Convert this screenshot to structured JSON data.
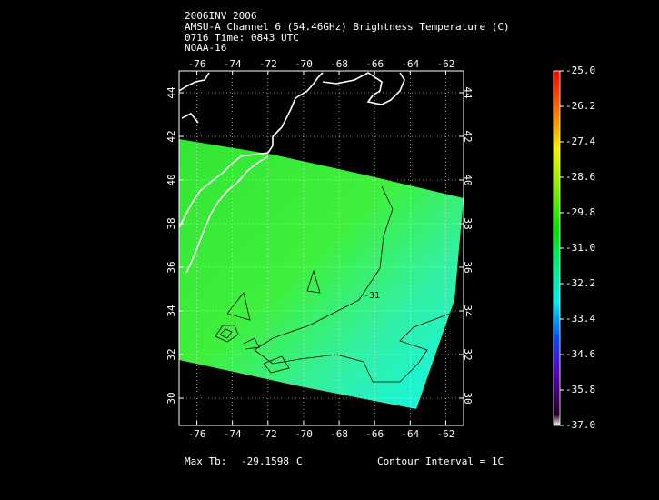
{
  "header": {
    "lines": [
      "2006INV 2006",
      "AMSU-A Channel 6 (54.46GHz) Brightness Temperature (C)",
      "0716 Time: 0843 UTC",
      "NOAA-16"
    ]
  },
  "map": {
    "xlim": [
      -77,
      -61
    ],
    "ylim": [
      28.75,
      45
    ],
    "xticks": [
      -76,
      -74,
      -72,
      -70,
      -68,
      -66,
      -64,
      -62
    ],
    "yticks": [
      30,
      32,
      34,
      36,
      38,
      40,
      42,
      44
    ],
    "contour_label": "-31"
  },
  "colorbar": {
    "lim": [
      -37,
      -25
    ],
    "ticks": [
      {
        "value": -25,
        "label": "-25.0"
      },
      {
        "value": -26.2,
        "label": "-26.2"
      },
      {
        "value": -27.4,
        "label": "-27.4"
      },
      {
        "value": -28.6,
        "label": "-28.6"
      },
      {
        "value": -29.8,
        "label": "-29.8"
      },
      {
        "value": -31,
        "label": "-31.0"
      },
      {
        "value": -32.2,
        "label": "-32.2"
      },
      {
        "value": -33.4,
        "label": "-33.4"
      },
      {
        "value": -34.6,
        "label": "-34.6"
      },
      {
        "value": -35.8,
        "label": "-35.8"
      },
      {
        "value": -37,
        "label": "-37.0"
      }
    ]
  },
  "footer": {
    "max_label": "Max Tb:",
    "max_value": "-29.1598",
    "max_unit": "C",
    "contour_interval": "Contour Interval = 1C"
  }
}
